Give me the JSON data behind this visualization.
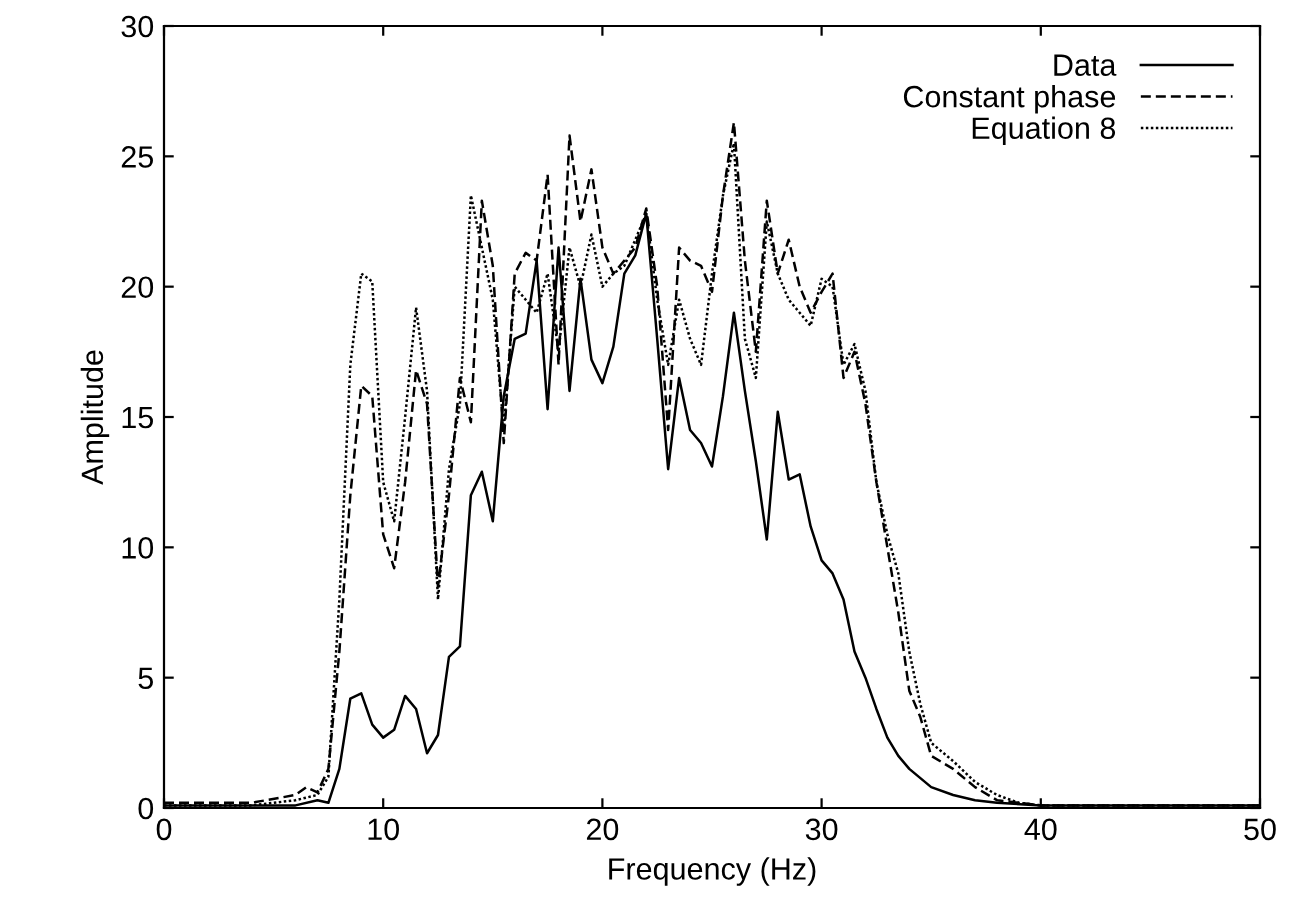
{
  "chart_data": {
    "type": "line",
    "xlabel": "Frequency (Hz)",
    "ylabel": "Amplitude",
    "xlim": [
      0,
      50
    ],
    "ylim": [
      0,
      30
    ],
    "xticks": [
      0,
      10,
      20,
      30,
      40,
      50
    ],
    "yticks": [
      0,
      5,
      10,
      15,
      20,
      25,
      30
    ],
    "grid": false,
    "legend": "top right",
    "series": [
      {
        "name": "Data",
        "color": "#000000",
        "line_style": "solid",
        "x": [
          0,
          2,
          4,
          6,
          7,
          7.5,
          8,
          8.5,
          9,
          9.5,
          10,
          10.5,
          11,
          11.5,
          12,
          12.5,
          13,
          13.5,
          14,
          14.5,
          15,
          15.5,
          16,
          16.5,
          17,
          17.5,
          18,
          18.5,
          19,
          19.5,
          20,
          20.5,
          21,
          21.5,
          22,
          22.5,
          23,
          23.5,
          24,
          24.5,
          25,
          25.5,
          26,
          26.5,
          27,
          27.5,
          28,
          28.5,
          29,
          29.5,
          30,
          30.5,
          31,
          31.5,
          32,
          32.5,
          33,
          33.5,
          34,
          35,
          36,
          37,
          38,
          40,
          50
        ],
        "values": [
          0.1,
          0.1,
          0.1,
          0.1,
          0.3,
          0.2,
          1.5,
          4.2,
          4.4,
          3.2,
          2.7,
          3.0,
          4.3,
          3.8,
          2.1,
          2.8,
          5.8,
          6.2,
          12.0,
          12.9,
          11.0,
          15.8,
          18.0,
          18.2,
          21.0,
          15.3,
          21.5,
          16.0,
          20.3,
          17.2,
          16.3,
          17.7,
          20.5,
          21.2,
          22.8,
          18.0,
          13.0,
          16.5,
          14.5,
          14.0,
          13.1,
          15.8,
          19.0,
          16.0,
          13.3,
          10.3,
          15.2,
          12.6,
          12.8,
          10.8,
          9.5,
          9.0,
          8.0,
          6.0,
          5.0,
          3.8,
          2.7,
          2.0,
          1.5,
          0.8,
          0.5,
          0.3,
          0.2,
          0.1,
          0.1
        ]
      },
      {
        "name": "Constant phase",
        "color": "#000000",
        "line_style": "dashed",
        "x": [
          0,
          2,
          4,
          6,
          6.5,
          7,
          7.5,
          8,
          8.5,
          9,
          9.5,
          10,
          10.5,
          11,
          11.5,
          12,
          12.5,
          13,
          13.5,
          14,
          14.5,
          15,
          15.5,
          16,
          16.5,
          17,
          17.5,
          18,
          18.5,
          19,
          19.5,
          20,
          20.5,
          21,
          21.5,
          22,
          22.5,
          23,
          23.5,
          24,
          24.5,
          25,
          25.5,
          26,
          26.5,
          27,
          27.5,
          28,
          28.5,
          29,
          29.5,
          30,
          30.5,
          31,
          31.5,
          32,
          32.5,
          33,
          33.5,
          34,
          34.5,
          35,
          36,
          37,
          38,
          39,
          40,
          50
        ],
        "values": [
          0.2,
          0.2,
          0.2,
          0.5,
          0.8,
          0.6,
          1.5,
          6.0,
          12.0,
          16.2,
          15.8,
          10.5,
          9.2,
          12.5,
          16.8,
          15.5,
          8.5,
          12.0,
          16.5,
          14.8,
          23.3,
          20.8,
          14.0,
          20.5,
          21.3,
          21.0,
          24.3,
          17.0,
          25.8,
          22.5,
          24.5,
          21.5,
          20.5,
          21.0,
          21.5,
          23.0,
          20.0,
          14.5,
          21.5,
          21.0,
          20.8,
          19.8,
          23.5,
          26.3,
          21.0,
          17.5,
          23.3,
          20.5,
          21.8,
          20.0,
          19.0,
          19.8,
          20.5,
          16.5,
          17.5,
          15.5,
          12.5,
          10.0,
          7.5,
          4.5,
          3.5,
          2.0,
          1.5,
          0.8,
          0.3,
          0.2,
          0.1,
          0.1
        ]
      },
      {
        "name": "Equation 8",
        "color": "#000000",
        "line_style": "dotted",
        "x": [
          0,
          2,
          4,
          6,
          7,
          7.5,
          8,
          8.5,
          9,
          9.5,
          10,
          10.5,
          11,
          11.5,
          12,
          12.5,
          13,
          13.5,
          14,
          14.5,
          15,
          15.5,
          16,
          16.5,
          17,
          17.5,
          18,
          18.5,
          19,
          19.5,
          20,
          20.5,
          21,
          21.5,
          22,
          22.5,
          23,
          23.5,
          24,
          24.5,
          25,
          25.5,
          26,
          26.5,
          27,
          27.5,
          28,
          28.5,
          29,
          29.5,
          30,
          30.5,
          31,
          31.5,
          32,
          32.5,
          33,
          33.5,
          34,
          34.5,
          35,
          36,
          37,
          38,
          39,
          40,
          50
        ],
        "values": [
          0.1,
          0.1,
          0.1,
          0.3,
          0.5,
          1.2,
          8.0,
          17.0,
          20.5,
          20.2,
          12.5,
          11.0,
          15.0,
          19.2,
          16.0,
          8.0,
          13.0,
          15.5,
          23.5,
          21.5,
          19.5,
          14.5,
          20.0,
          19.5,
          19.0,
          20.5,
          17.5,
          21.5,
          20.0,
          22.0,
          20.0,
          20.5,
          20.8,
          21.8,
          22.8,
          19.5,
          17.0,
          19.5,
          18.0,
          17.0,
          20.5,
          23.5,
          25.5,
          18.0,
          16.5,
          22.5,
          20.5,
          19.5,
          19.0,
          18.5,
          20.3,
          20.0,
          17.0,
          17.8,
          16.0,
          12.5,
          10.5,
          9.0,
          6.0,
          4.0,
          2.5,
          1.8,
          1.0,
          0.5,
          0.2,
          0.1,
          0.1
        ]
      }
    ]
  }
}
